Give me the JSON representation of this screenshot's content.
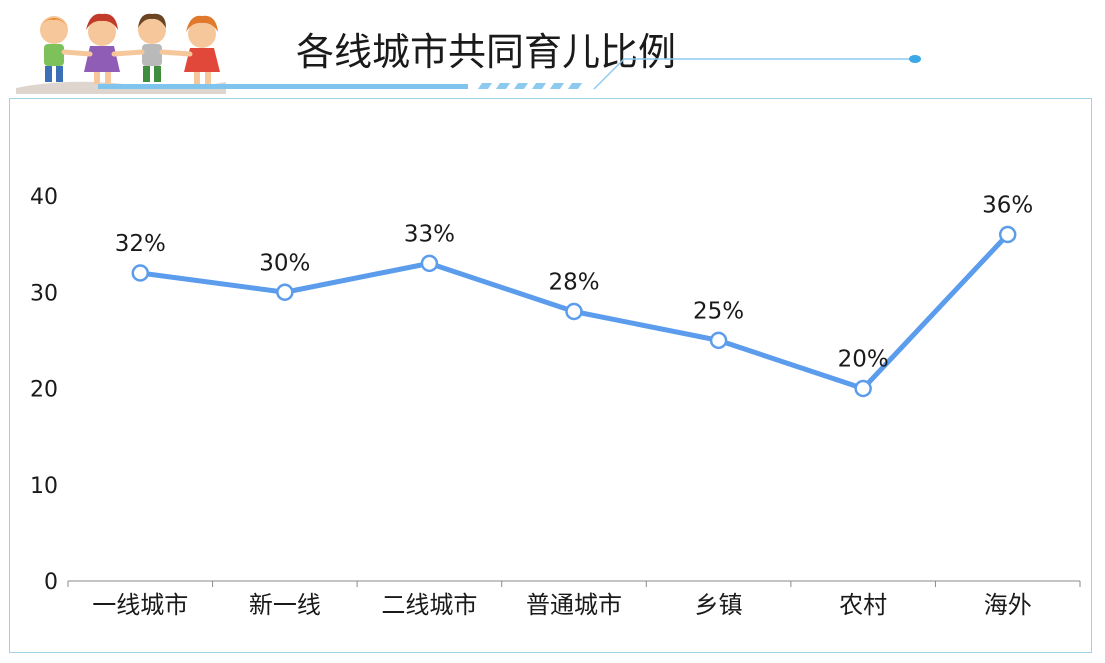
{
  "header": {
    "title": "各线城市共同育儿比例"
  },
  "colors": {
    "line": "#5b9cec",
    "frame": "#9fd3e4",
    "accent": "#3aa9e6"
  },
  "chart_data": {
    "type": "line",
    "categories": [
      "一线城市",
      "新一线",
      "二线城市",
      "普通城市",
      "乡镇",
      "农村",
      "海外"
    ],
    "series": [
      {
        "values": [
          32,
          30,
          33,
          28,
          25,
          20,
          36
        ]
      }
    ],
    "data_labels": [
      "32%",
      "30%",
      "33%",
      "28%",
      "25%",
      "20%",
      "36%"
    ],
    "y_ticks": [
      "0",
      "10",
      "20",
      "30",
      "40"
    ],
    "ylim": [
      0,
      40
    ],
    "grid": false,
    "legend": "none"
  }
}
